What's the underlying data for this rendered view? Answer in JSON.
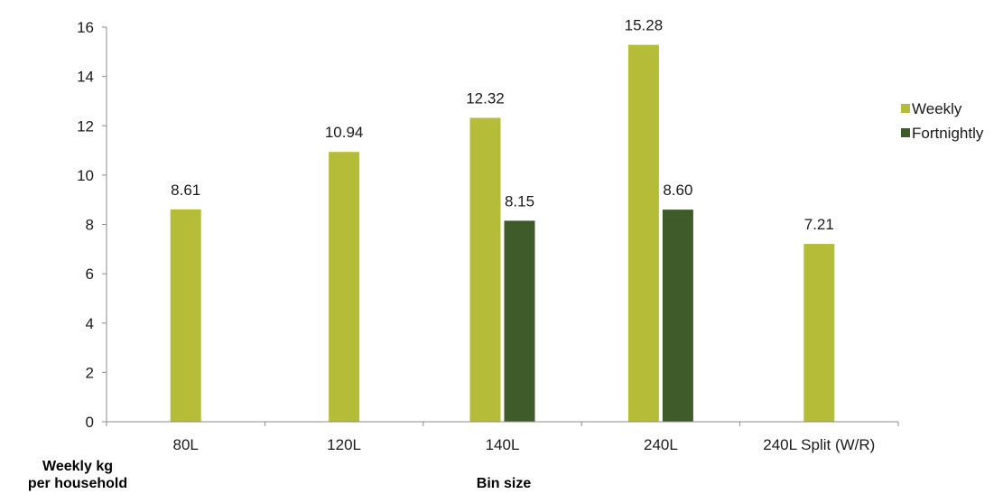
{
  "chart_data": {
    "type": "bar",
    "title": "",
    "xlabel": "Bin size",
    "ylabel": [
      "Weekly kg",
      "per household"
    ],
    "ylim": [
      0,
      16
    ],
    "yticks": [
      "0",
      "2",
      "4",
      "6",
      "8",
      "10",
      "12",
      "14",
      "16"
    ],
    "grid": false,
    "legend_position": "right",
    "categories": [
      "80L",
      "120L",
      "140L",
      "240L",
      "240L Split (W/R)"
    ],
    "series": [
      {
        "name": "Weekly",
        "color": "#b5bd38",
        "values": [
          8.61,
          10.94,
          12.32,
          15.28,
          7.21
        ],
        "labels": [
          "8.61",
          "10.94",
          "12.32",
          "15.28",
          "7.21"
        ]
      },
      {
        "name": "Fortnightly",
        "color": "#3f5b2a",
        "values": [
          null,
          null,
          8.15,
          8.6,
          null
        ],
        "labels": [
          "",
          "",
          "8.15",
          "8.60",
          ""
        ]
      }
    ]
  }
}
